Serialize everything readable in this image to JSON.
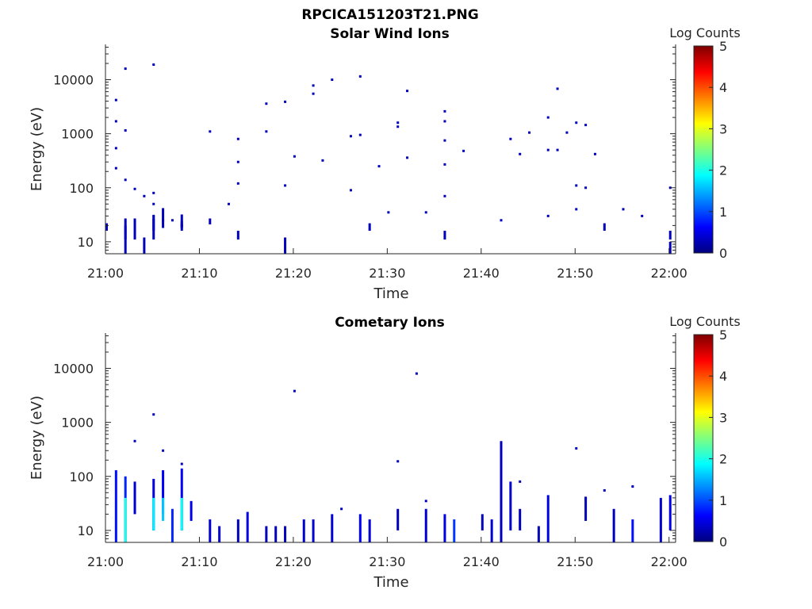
{
  "figure": {
    "title": "RPCICA151203T21.PNG"
  },
  "colorbar_colors": [
    "#00007f",
    "#0000ff",
    "#007fff",
    "#00ffff",
    "#7fff7f",
    "#ffff00",
    "#ff7f00",
    "#ff0000",
    "#7f0000"
  ],
  "chart_data": [
    {
      "type": "heatmap",
      "title": "Solar Wind Ions",
      "xlabel": "Time",
      "ylabel": "Energy (eV)",
      "y_scale": "log",
      "xlim": [
        "21:00",
        "22:00"
      ],
      "ylim": [
        6,
        45000
      ],
      "x_ticks": [
        "21:00",
        "21:10",
        "21:20",
        "21:30",
        "21:40",
        "21:50",
        "22:00"
      ],
      "y_ticks": [
        "10",
        "100",
        "1000",
        "10000"
      ],
      "colorbar": {
        "label": "Log Counts",
        "range": [
          0,
          5
        ],
        "ticks": [
          "0",
          "1",
          "2",
          "3",
          "4",
          "5"
        ]
      },
      "points": [
        {
          "t": "21:01",
          "e": 4200,
          "c": 0.3
        },
        {
          "t": "21:01",
          "e": 1700,
          "c": 0.3
        },
        {
          "t": "21:01",
          "e": 230,
          "c": 0.3
        },
        {
          "t": "21:02",
          "e": 16000,
          "c": 0.3
        },
        {
          "t": "21:02",
          "e": 1150,
          "c": 0.3
        },
        {
          "t": "21:01",
          "e": 540,
          "c": 0.3
        },
        {
          "t": "21:02",
          "e": 140,
          "c": 0.3
        },
        {
          "t": "21:03",
          "e": 95,
          "c": 0.3
        },
        {
          "t": "21:04",
          "e": 70,
          "c": 0.3
        },
        {
          "t": "21:05",
          "e": 19000,
          "c": 0.3
        },
        {
          "t": "21:05",
          "e": 80,
          "c": 0.3
        },
        {
          "t": "21:05",
          "e": 50,
          "c": 0.3
        },
        {
          "t": "21:05",
          "e": 30,
          "c": 0.3
        },
        {
          "t": "21:06",
          "e": 25,
          "c": 0.3
        },
        {
          "t": "21:07",
          "e": 25,
          "c": 0.3
        },
        {
          "t": "21:08",
          "e": 20,
          "c": 0.3
        },
        {
          "t": "21:11",
          "e": 1100,
          "c": 0.3
        },
        {
          "t": "21:13",
          "e": 50,
          "c": 0.3
        },
        {
          "t": "21:14",
          "e": 120,
          "c": 0.3
        },
        {
          "t": "21:14",
          "e": 300,
          "c": 0.3
        },
        {
          "t": "21:14",
          "e": 800,
          "c": 0.3
        },
        {
          "t": "21:17",
          "e": 3600,
          "c": 0.3
        },
        {
          "t": "21:17",
          "e": 1100,
          "c": 0.3
        },
        {
          "t": "21:19",
          "e": 3900,
          "c": 0.3
        },
        {
          "t": "21:19",
          "e": 110,
          "c": 0.3
        },
        {
          "t": "21:20",
          "e": 380,
          "c": 0.3
        },
        {
          "t": "21:22",
          "e": 7800,
          "c": 0.3
        },
        {
          "t": "21:22",
          "e": 5500,
          "c": 0.3
        },
        {
          "t": "21:24",
          "e": 10000,
          "c": 0.3
        },
        {
          "t": "21:23",
          "e": 320,
          "c": 0.3
        },
        {
          "t": "21:26",
          "e": 900,
          "c": 0.3
        },
        {
          "t": "21:26",
          "e": 90,
          "c": 0.3
        },
        {
          "t": "21:27",
          "e": 11500,
          "c": 0.3
        },
        {
          "t": "21:27",
          "e": 950,
          "c": 0.3
        },
        {
          "t": "21:29",
          "e": 250,
          "c": 0.3
        },
        {
          "t": "21:30",
          "e": 35,
          "c": 0.3
        },
        {
          "t": "21:31",
          "e": 1600,
          "c": 0.3
        },
        {
          "t": "21:31",
          "e": 1350,
          "c": 0.3
        },
        {
          "t": "21:32",
          "e": 6200,
          "c": 0.3
        },
        {
          "t": "21:32",
          "e": 360,
          "c": 0.3
        },
        {
          "t": "21:34",
          "e": 35,
          "c": 0.3
        },
        {
          "t": "21:36",
          "e": 1700,
          "c": 0.3
        },
        {
          "t": "21:36",
          "e": 750,
          "c": 0.3
        },
        {
          "t": "21:36",
          "e": 270,
          "c": 0.3
        },
        {
          "t": "21:36",
          "e": 70,
          "c": 0.3
        },
        {
          "t": "21:36",
          "e": 2600,
          "c": 0.3
        },
        {
          "t": "21:38",
          "e": 480,
          "c": 0.3
        },
        {
          "t": "21:42",
          "e": 25,
          "c": 0.3
        },
        {
          "t": "21:43",
          "e": 800,
          "c": 0.3
        },
        {
          "t": "21:44",
          "e": 420,
          "c": 0.3
        },
        {
          "t": "21:45",
          "e": 1050,
          "c": 0.3
        },
        {
          "t": "21:47",
          "e": 2000,
          "c": 0.3
        },
        {
          "t": "21:47",
          "e": 500,
          "c": 0.3
        },
        {
          "t": "21:47",
          "e": 30,
          "c": 0.3
        },
        {
          "t": "21:48",
          "e": 6800,
          "c": 0.3
        },
        {
          "t": "21:48",
          "e": 500,
          "c": 0.3
        },
        {
          "t": "21:49",
          "e": 1050,
          "c": 0.3
        },
        {
          "t": "21:50",
          "e": 1600,
          "c": 0.3
        },
        {
          "t": "21:50",
          "e": 110,
          "c": 0.3
        },
        {
          "t": "21:50",
          "e": 40,
          "c": 0.3
        },
        {
          "t": "21:51",
          "e": 1450,
          "c": 0.3
        },
        {
          "t": "21:51",
          "e": 100,
          "c": 0.3
        },
        {
          "t": "21:52",
          "e": 420,
          "c": 0.3
        },
        {
          "t": "21:55",
          "e": 40,
          "c": 0.3
        },
        {
          "t": "21:57",
          "e": 30,
          "c": 0.3
        },
        {
          "t": "22:00",
          "e": 100,
          "c": 0.3
        }
      ],
      "columns": [
        {
          "t": "21:00",
          "e0": 16,
          "e1": 22,
          "c": 0.3
        },
        {
          "t": "21:02",
          "e0": 11,
          "e1": 27,
          "c": 0.3
        },
        {
          "t": "21:02",
          "e0": 6,
          "e1": 20,
          "c": 0.3
        },
        {
          "t": "21:03",
          "e0": 11,
          "e1": 27,
          "c": 0.3
        },
        {
          "t": "21:04",
          "e0": 6,
          "e1": 12,
          "c": 0.3
        },
        {
          "t": "21:05",
          "e0": 16,
          "e1": 27,
          "c": 0.3
        },
        {
          "t": "21:05",
          "e0": 11,
          "e1": 30,
          "c": 0.3
        },
        {
          "t": "21:06",
          "e0": 18,
          "e1": 42,
          "c": 0.3
        },
        {
          "t": "21:08",
          "e0": 16,
          "e1": 32,
          "c": 0.3
        },
        {
          "t": "21:08",
          "e0": 18,
          "e1": 24,
          "c": 0.3
        },
        {
          "t": "21:11",
          "e0": 21,
          "e1": 27,
          "c": 0.3
        },
        {
          "t": "21:14",
          "e0": 11,
          "e1": 16,
          "c": 0.3
        },
        {
          "t": "21:19",
          "e0": 6,
          "e1": 12,
          "c": 0.3
        },
        {
          "t": "21:28",
          "e0": 16,
          "e1": 22,
          "c": 0.3
        },
        {
          "t": "21:36",
          "e0": 11,
          "e1": 16,
          "c": 0.3
        },
        {
          "t": "21:53",
          "e0": 16,
          "e1": 22,
          "c": 0.3
        },
        {
          "t": "22:00",
          "e0": 11,
          "e1": 16,
          "c": 0.3
        },
        {
          "t": "22:00",
          "e0": 6,
          "e1": 10,
          "c": 0.3
        }
      ]
    },
    {
      "type": "heatmap",
      "title": "Cometary Ions",
      "xlabel": "Time",
      "ylabel": "Energy (eV)",
      "y_scale": "log",
      "xlim": [
        "21:00",
        "22:00"
      ],
      "ylim": [
        6,
        45000
      ],
      "x_ticks": [
        "21:00",
        "21:10",
        "21:20",
        "21:30",
        "21:40",
        "21:50",
        "22:00"
      ],
      "y_ticks": [
        "10",
        "100",
        "1000",
        "10000"
      ],
      "colorbar": {
        "label": "Log Counts",
        "range": [
          0,
          5
        ],
        "ticks": [
          "0",
          "1",
          "2",
          "3",
          "4",
          "5"
        ]
      },
      "points": [
        {
          "t": "21:05",
          "e": 1400,
          "c": 0.3
        },
        {
          "t": "21:03",
          "e": 450,
          "c": 0.3
        },
        {
          "t": "21:06",
          "e": 300,
          "c": 0.3
        },
        {
          "t": "21:08",
          "e": 170,
          "c": 0.3
        },
        {
          "t": "21:20",
          "e": 3800,
          "c": 0.3
        },
        {
          "t": "21:31",
          "e": 190,
          "c": 0.3
        },
        {
          "t": "21:33",
          "e": 8000,
          "c": 0.3
        },
        {
          "t": "21:34",
          "e": 35,
          "c": 0.3
        },
        {
          "t": "21:42",
          "e": 250,
          "c": 0.3
        },
        {
          "t": "21:44",
          "e": 80,
          "c": 0.3
        },
        {
          "t": "21:50",
          "e": 330,
          "c": 0.3
        },
        {
          "t": "21:51",
          "e": 40,
          "c": 0.3
        },
        {
          "t": "21:53",
          "e": 55,
          "c": 0.3
        },
        {
          "t": "21:56",
          "e": 65,
          "c": 0.3
        },
        {
          "t": "21:25",
          "e": 25,
          "c": 0.3
        }
      ],
      "columns": [
        {
          "t": "21:01",
          "e0": 6,
          "e1": 130,
          "c": 0.7
        },
        {
          "t": "21:02",
          "e0": 6,
          "e1": 100,
          "c": 0.8
        },
        {
          "t": "21:02",
          "e0": 6,
          "e1": 40,
          "c": 2.0
        },
        {
          "t": "21:03",
          "e0": 20,
          "e1": 80,
          "c": 0.4
        },
        {
          "t": "21:05",
          "e0": 10,
          "e1": 90,
          "c": 0.5
        },
        {
          "t": "21:05",
          "e0": 10,
          "e1": 40,
          "c": 1.8
        },
        {
          "t": "21:06",
          "e0": 20,
          "e1": 130,
          "c": 0.6
        },
        {
          "t": "21:06",
          "e0": 15,
          "e1": 40,
          "c": 1.6
        },
        {
          "t": "21:07",
          "e0": 6,
          "e1": 25,
          "c": 0.8
        },
        {
          "t": "21:08",
          "e0": 10,
          "e1": 140,
          "c": 0.6
        },
        {
          "t": "21:08",
          "e0": 10,
          "e1": 40,
          "c": 1.9
        },
        {
          "t": "21:09",
          "e0": 15,
          "e1": 35,
          "c": 0.5
        },
        {
          "t": "21:11",
          "e0": 6,
          "e1": 16,
          "c": 0.4
        },
        {
          "t": "21:12",
          "e0": 6,
          "e1": 12,
          "c": 0.4
        },
        {
          "t": "21:14",
          "e0": 6,
          "e1": 16,
          "c": 0.3
        },
        {
          "t": "21:15",
          "e0": 6,
          "e1": 22,
          "c": 0.5
        },
        {
          "t": "21:17",
          "e0": 6,
          "e1": 12,
          "c": 0.3
        },
        {
          "t": "21:18",
          "e0": 6,
          "e1": 12,
          "c": 0.3
        },
        {
          "t": "21:19",
          "e0": 6,
          "e1": 12,
          "c": 0.3
        },
        {
          "t": "21:21",
          "e0": 6,
          "e1": 16,
          "c": 0.4
        },
        {
          "t": "21:22",
          "e0": 6,
          "e1": 16,
          "c": 0.4
        },
        {
          "t": "21:24",
          "e0": 6,
          "e1": 20,
          "c": 0.4
        },
        {
          "t": "21:27",
          "e0": 6,
          "e1": 20,
          "c": 0.6
        },
        {
          "t": "21:28",
          "e0": 6,
          "e1": 16,
          "c": 0.4
        },
        {
          "t": "21:31",
          "e0": 10,
          "e1": 25,
          "c": 0.3
        },
        {
          "t": "21:34",
          "e0": 6,
          "e1": 25,
          "c": 0.4
        },
        {
          "t": "21:36",
          "e0": 6,
          "e1": 20,
          "c": 0.5
        },
        {
          "t": "21:37",
          "e0": 6,
          "e1": 16,
          "c": 0.9
        },
        {
          "t": "21:40",
          "e0": 10,
          "e1": 20,
          "c": 0.3
        },
        {
          "t": "21:41",
          "e0": 6,
          "e1": 16,
          "c": 0.4
        },
        {
          "t": "21:42",
          "e0": 6,
          "e1": 450,
          "c": 0.3
        },
        {
          "t": "21:43",
          "e0": 10,
          "e1": 80,
          "c": 0.4
        },
        {
          "t": "21:44",
          "e0": 10,
          "e1": 25,
          "c": 0.3
        },
        {
          "t": "21:46",
          "e0": 6,
          "e1": 12,
          "c": 0.3
        },
        {
          "t": "21:47",
          "e0": 6,
          "e1": 45,
          "c": 0.5
        },
        {
          "t": "21:51",
          "e0": 15,
          "e1": 40,
          "c": 0.3
        },
        {
          "t": "21:54",
          "e0": 6,
          "e1": 25,
          "c": 0.3
        },
        {
          "t": "21:56",
          "e0": 6,
          "e1": 16,
          "c": 0.7
        },
        {
          "t": "21:59",
          "e0": 6,
          "e1": 40,
          "c": 0.4
        },
        {
          "t": "22:00",
          "e0": 10,
          "e1": 45,
          "c": 0.5
        }
      ]
    }
  ]
}
